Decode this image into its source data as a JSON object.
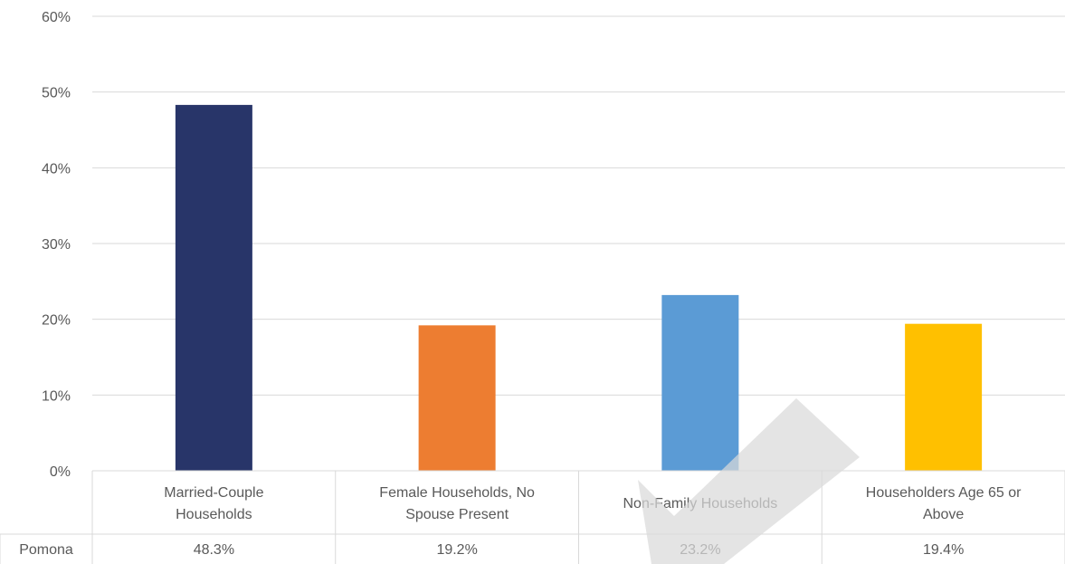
{
  "chart_data": {
    "type": "bar",
    "categories": [
      [
        "Married-Couple",
        "Households"
      ],
      [
        "Female Households, No",
        "Spouse Present"
      ],
      [
        "Non-Family Households"
      ],
      [
        "Householders Age 65 or",
        "Above"
      ]
    ],
    "series": [
      {
        "name": "Pomona",
        "values": [
          48.3,
          19.2,
          23.2,
          19.4
        ],
        "labels": [
          "48.3%",
          "19.2%",
          "23.2%",
          "19.4%"
        ]
      }
    ],
    "bar_colors": [
      "#283569",
      "#ED7D31",
      "#5B9BD5",
      "#FFC000"
    ],
    "ylim": [
      0,
      60
    ],
    "yticks": [
      "0%",
      "10%",
      "20%",
      "30%",
      "40%",
      "50%",
      "60%"
    ],
    "grid": true,
    "data_table": true,
    "title": "",
    "xlabel": "",
    "ylabel": ""
  }
}
